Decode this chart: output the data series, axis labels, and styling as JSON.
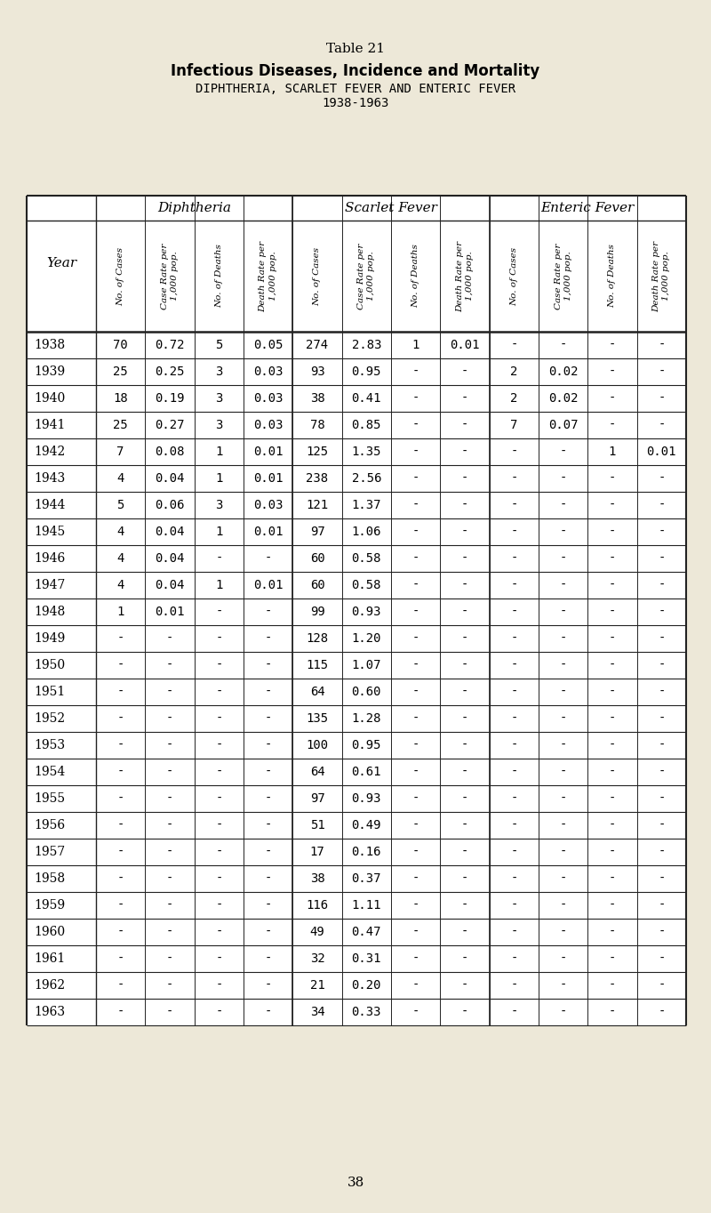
{
  "title1": "Table 21",
  "title2": "Infectious Diseases, Incidence and Mortality",
  "title3": "DIPHTHERIA, SCARLET FEVER AND ENTERIC FEVER",
  "title4": "1938-1963",
  "bg_color": "#ede8d8",
  "years": [
    1938,
    1939,
    1940,
    1941,
    1942,
    1943,
    1944,
    1945,
    1946,
    1947,
    1948,
    1949,
    1950,
    1951,
    1952,
    1953,
    1954,
    1955,
    1956,
    1957,
    1958,
    1959,
    1960,
    1961,
    1962,
    1963
  ],
  "rows": [
    [
      "70",
      "0.72",
      "5",
      "0.05",
      "274",
      "2.83",
      "1",
      "0.01",
      "-",
      "-",
      "-",
      "-"
    ],
    [
      "25",
      "0.25",
      "3",
      "0.03",
      "93",
      "0.95",
      "-",
      "-",
      "2",
      "0.02",
      "-",
      "-"
    ],
    [
      "18",
      "0.19",
      "3",
      "0.03",
      "38",
      "0.41",
      "-",
      "-",
      "2",
      "0.02",
      "-",
      "-"
    ],
    [
      "25",
      "0.27",
      "3",
      "0.03",
      "78",
      "0.85",
      "-",
      "-",
      "7",
      "0.07",
      "-",
      "-"
    ],
    [
      "7",
      "0.08",
      "1",
      "0.01",
      "125",
      "1.35",
      "-",
      "-",
      "-",
      "-",
      "1",
      "0.01"
    ],
    [
      "4",
      "0.04",
      "1",
      "0.01",
      "238",
      "2.56",
      "-",
      "-",
      "-",
      "-",
      "-",
      "-"
    ],
    [
      "5",
      "0.06",
      "3",
      "0.03",
      "121",
      "1.37",
      "-",
      "-",
      "-",
      "-",
      "-",
      "-"
    ],
    [
      "4",
      "0.04",
      "1",
      "0.01",
      "97",
      "1.06",
      "-",
      "-",
      "-",
      "-",
      "-",
      "-"
    ],
    [
      "4",
      "0.04",
      "-",
      "-",
      "60",
      "0.58",
      "-",
      "-",
      "-",
      "-",
      "-",
      "-"
    ],
    [
      "4",
      "0.04",
      "1",
      "0.01",
      "60",
      "0.58",
      "-",
      "-",
      "-",
      "-",
      "-",
      "-"
    ],
    [
      "1",
      "0.01",
      "-",
      "-",
      "99",
      "0.93",
      "-",
      "-",
      "-",
      "-",
      "-",
      "-"
    ],
    [
      "-",
      "-",
      "-",
      "-",
      "128",
      "1.20",
      "-",
      "-",
      "-",
      "-",
      "-",
      "-"
    ],
    [
      "-",
      "-",
      "-",
      "-",
      "115",
      "1.07",
      "-",
      "-",
      "-",
      "-",
      "-",
      "-"
    ],
    [
      "-",
      "-",
      "-",
      "-",
      "64",
      "0.60",
      "-",
      "-",
      "-",
      "-",
      "-",
      "-"
    ],
    [
      "-",
      "-",
      "-",
      "-",
      "135",
      "1.28",
      "-",
      "-",
      "-",
      "-",
      "-",
      "-"
    ],
    [
      "-",
      "-",
      "-",
      "-",
      "100",
      "0.95",
      "-",
      "-",
      "-",
      "-",
      "-",
      "-"
    ],
    [
      "-",
      "-",
      "-",
      "-",
      "64",
      "0.61",
      "-",
      "-",
      "-",
      "-",
      "-",
      "-"
    ],
    [
      "-",
      "-",
      "-",
      "-",
      "97",
      "0.93",
      "-",
      "-",
      "-",
      "-",
      "-",
      "-"
    ],
    [
      "-",
      "-",
      "-",
      "-",
      "51",
      "0.49",
      "-",
      "-",
      "-",
      "-",
      "-",
      "-"
    ],
    [
      "-",
      "-",
      "-",
      "-",
      "17",
      "0.16",
      "-",
      "-",
      "-",
      "-",
      "-",
      "-"
    ],
    [
      "-",
      "-",
      "-",
      "-",
      "38",
      "0.37",
      "-",
      "-",
      "-",
      "-",
      "-",
      "-"
    ],
    [
      "-",
      "-",
      "-",
      "-",
      "116",
      "1.11",
      "-",
      "-",
      "-",
      "-",
      "-",
      "-"
    ],
    [
      "-",
      "-",
      "-",
      "-",
      "49",
      "0.47",
      "-",
      "-",
      "-",
      "-",
      "-",
      "-"
    ],
    [
      "-",
      "-",
      "-",
      "-",
      "32",
      "0.31",
      "-",
      "-",
      "-",
      "-",
      "-",
      "-"
    ],
    [
      "-",
      "-",
      "-",
      "-",
      "21",
      "0.20",
      "-",
      "-",
      "-",
      "-",
      "-",
      "-"
    ],
    [
      "-",
      "-",
      "-",
      "-",
      "34",
      "0.33",
      "-",
      "-",
      "-",
      "-",
      "-",
      "-"
    ]
  ],
  "footer": "38"
}
